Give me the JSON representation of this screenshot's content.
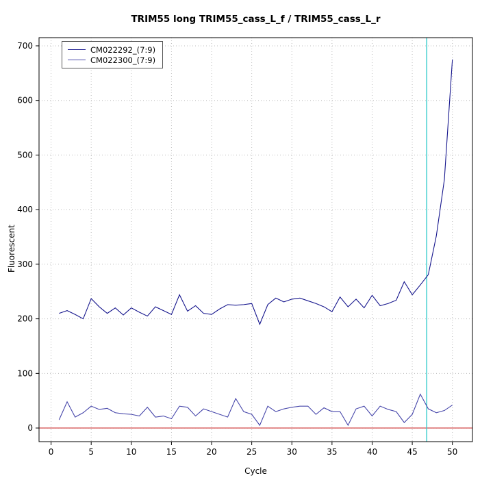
{
  "chart_data": {
    "type": "line",
    "title": "TRIM55 long TRIM55_cass_L_f / TRIM55_cass_L_r",
    "xlabel": "Cycle",
    "ylabel": "Fluorescent",
    "xlim": [
      0,
      50
    ],
    "ylim": [
      0,
      700
    ],
    "x_range": [
      -1.5,
      52.5
    ],
    "y_range": [
      -25,
      715
    ],
    "x_ticks": [
      0,
      5,
      10,
      15,
      20,
      25,
      30,
      35,
      40,
      45,
      50
    ],
    "y_ticks": [
      0,
      100,
      200,
      300,
      400,
      500,
      600,
      700
    ],
    "grid": true,
    "legend_position": "top-left",
    "x": [
      1,
      2,
      3,
      4,
      5,
      6,
      7,
      8,
      9,
      10,
      11,
      12,
      13,
      14,
      15,
      16,
      17,
      18,
      19,
      20,
      21,
      22,
      23,
      24,
      25,
      26,
      27,
      28,
      29,
      30,
      31,
      32,
      33,
      34,
      35,
      36,
      37,
      38,
      39,
      40,
      41,
      42,
      43,
      44,
      45,
      46,
      47,
      48,
      49,
      50
    ],
    "series": [
      {
        "name": "CM022292_(7:9)",
        "color": "#14148c",
        "values": [
          210,
          215,
          208,
          200,
          237,
          222,
          210,
          220,
          207,
          220,
          212,
          205,
          222,
          215,
          208,
          244,
          214,
          224,
          210,
          208,
          218,
          226,
          225,
          226,
          228,
          190,
          226,
          238,
          231,
          236,
          238,
          233,
          228,
          222,
          213,
          240,
          222,
          236,
          220,
          243,
          224,
          228,
          234,
          268,
          244,
          262,
          281,
          352,
          455,
          675
        ]
      },
      {
        "name": "CM022300_(7:9)",
        "color": "#4646aa",
        "values": [
          15,
          48,
          20,
          28,
          40,
          34,
          36,
          28,
          26,
          25,
          22,
          38,
          20,
          22,
          17,
          40,
          38,
          22,
          35,
          30,
          25,
          20,
          54,
          30,
          25,
          5,
          40,
          30,
          35,
          38,
          40,
          40,
          25,
          37,
          30,
          30,
          5,
          35,
          40,
          22,
          40,
          34,
          30,
          10,
          25,
          62,
          35,
          28,
          32,
          42
        ]
      }
    ],
    "threshold_line": {
      "y": 0,
      "color": "#cc3333"
    },
    "ct_line": {
      "x": 46.8,
      "color": "#33cccc"
    }
  }
}
